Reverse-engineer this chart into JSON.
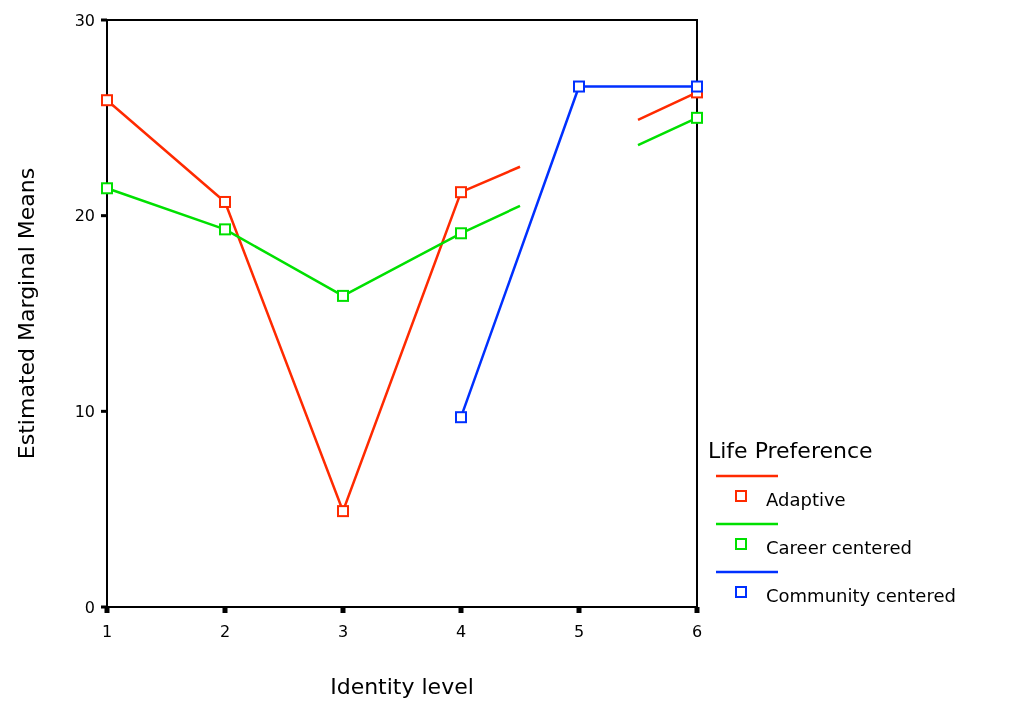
{
  "chart_data": {
    "type": "line",
    "xlabel": "Identity level",
    "ylabel": "Estimated Marginal Means",
    "legend_title": "Life Preference",
    "xlim": [
      1,
      6
    ],
    "xticks": [
      1,
      2,
      3,
      4,
      5,
      6
    ],
    "ylim": [
      0,
      30
    ],
    "yticks": [
      0,
      10,
      20,
      30
    ],
    "grid": false,
    "legend": "right",
    "marker": "square",
    "line_style": "solid",
    "series": [
      {
        "name": "Adaptive",
        "color": "#ff2a00",
        "x": [
          1,
          2,
          3,
          4,
          4.5,
          5,
          5.5,
          6
        ],
        "values": [
          25.9,
          20.7,
          4.9,
          21.2,
          22.5,
          null,
          24.9,
          26.3
        ]
      },
      {
        "name": "Career centered",
        "color": "#00e000",
        "x": [
          1,
          2,
          3,
          4,
          4.5,
          5,
          5.5,
          6
        ],
        "values": [
          21.4,
          19.3,
          15.9,
          19.1,
          20.5,
          null,
          23.6,
          25.0
        ]
      },
      {
        "name": "Community centered",
        "color": "#0030ff",
        "x": [
          4,
          5,
          6
        ],
        "values": [
          9.7,
          26.6,
          26.6
        ]
      }
    ]
  }
}
